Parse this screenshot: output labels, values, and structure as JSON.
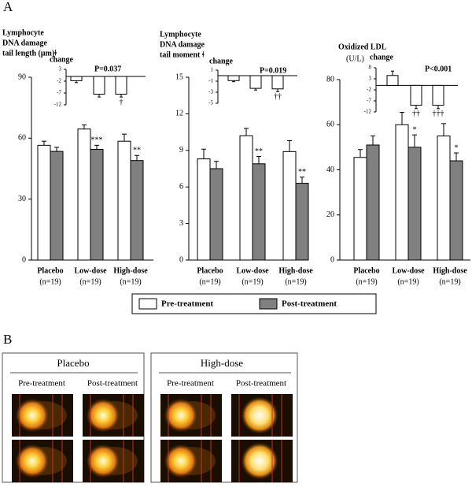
{
  "panel_a_label": "A",
  "chart_data": [
    {
      "type": "bar",
      "title": [
        "Lymphocyte",
        "DNA damage",
        "tail length (μm)ǂ"
      ],
      "categories": [
        "Placebo",
        "Low-dose",
        "High-dose"
      ],
      "sublabels": [
        "(n=19)",
        "(n=19)",
        "(n=19)"
      ],
      "ylim": [
        0,
        90
      ],
      "yticks": [
        0,
        30,
        60,
        90
      ],
      "series": [
        {
          "name": "Pre-treatment",
          "color": "#ffffff",
          "values": [
            56.5,
            64.5,
            58.5
          ],
          "errors": [
            2,
            2,
            3.5
          ],
          "annotations": [
            null,
            null,
            null
          ]
        },
        {
          "name": "Post-treatment",
          "color": "#808080",
          "values": [
            53.5,
            54.5,
            49
          ],
          "errors": [
            2,
            2,
            2.5
          ],
          "annotations": [
            null,
            "***",
            "**"
          ]
        }
      ],
      "inset": {
        "label": "change",
        "p_value": "P=0.037",
        "ylim": [
          -12,
          3
        ],
        "yticks": [
          3,
          -2,
          -7,
          -12
        ],
        "values": [
          -1.8,
          -7.5,
          -7.5
        ],
        "errors": [
          0.8,
          1.2,
          1.2
        ],
        "annotations": [
          null,
          null,
          "†"
        ]
      }
    },
    {
      "type": "bar",
      "title": [
        "Lymphocyte",
        "DNA damage",
        "tail moment ǂ"
      ],
      "categories": [
        "Placebo",
        "Low-dose",
        "High-dose"
      ],
      "sublabels": [
        "(n=19)",
        "(n=19)",
        "(n=19)"
      ],
      "ylim": [
        0,
        15
      ],
      "yticks": [
        0,
        3,
        6,
        9,
        12,
        15
      ],
      "series": [
        {
          "name": "Pre-treatment",
          "color": "#ffffff",
          "values": [
            8.3,
            10.2,
            8.9
          ],
          "errors": [
            0.8,
            0.6,
            0.9
          ],
          "annotations": [
            null,
            null,
            null
          ]
        },
        {
          "name": "Post-treatment",
          "color": "#808080",
          "values": [
            7.5,
            7.9,
            6.3
          ],
          "errors": [
            0.6,
            0.6,
            0.5
          ],
          "annotations": [
            null,
            "**",
            "**"
          ]
        }
      ],
      "inset": {
        "label": "change",
        "p_value": "P=0.019",
        "ylim": [
          -5,
          1
        ],
        "yticks": [
          1,
          -1,
          -3,
          -5
        ],
        "values": [
          -0.9,
          -2.3,
          -2.4
        ],
        "errors": [
          0.2,
          0.3,
          0.5
        ],
        "annotations": [
          null,
          null,
          "††"
        ]
      }
    },
    {
      "type": "bar",
      "title": [
        "Oxidized LDL"
      ],
      "unit": "(U/L)",
      "categories": [
        "Placebo",
        "Low-dose",
        "High-dose"
      ],
      "sublabels": [
        "(n=19)",
        "(n=19)",
        "(n=19)"
      ],
      "ylim": [
        0,
        80
      ],
      "yticks": [
        0,
        20,
        40,
        60,
        80
      ],
      "series": [
        {
          "name": "Pre-treatment",
          "color": "#ffffff",
          "values": [
            45.5,
            60,
            55
          ],
          "errors": [
            3.5,
            5.5,
            5.5
          ],
          "annotations": [
            null,
            null,
            null
          ]
        },
        {
          "name": "Post-treatment",
          "color": "#808080",
          "values": [
            51,
            50,
            44
          ],
          "errors": [
            4,
            5.5,
            3.5
          ],
          "annotations": [
            null,
            "*",
            "*"
          ]
        }
      ],
      "inset": {
        "label": "change",
        "p_value": "P<0.001",
        "ylim": [
          -12,
          8
        ],
        "yticks": [
          8,
          3,
          -2,
          -7,
          -12
        ],
        "values": [
          4.5,
          -9,
          -9
        ],
        "errors": [
          2,
          1.5,
          1.5
        ],
        "annotations": [
          null,
          "††",
          "†††"
        ]
      }
    }
  ],
  "panel_b": {
    "label": "B",
    "groups": [
      {
        "title": "Placebo",
        "columns": [
          "Pre-treatment",
          "Post-treatment"
        ]
      },
      {
        "title": "High-dose",
        "columns": [
          "Pre-treatment",
          "Post-treatment"
        ]
      }
    ]
  }
}
